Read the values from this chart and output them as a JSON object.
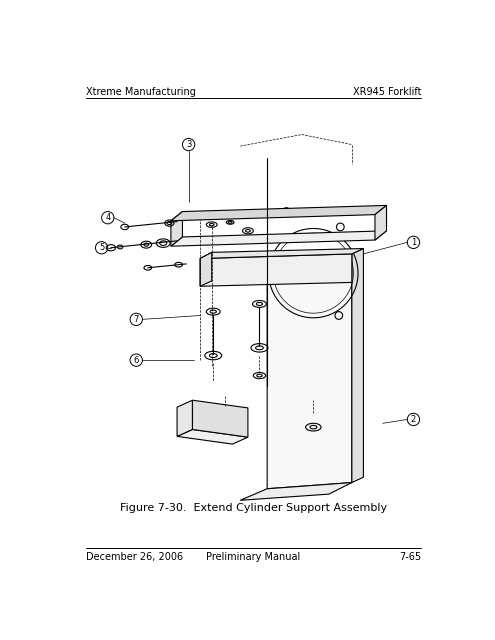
{
  "bg_color": "#ffffff",
  "header_left": "Xtreme Manufacturing",
  "header_right": "XR945 Forklift",
  "footer_left": "December 26, 2006",
  "footer_center": "Preliminary Manual",
  "footer_right": "7-65",
  "caption": "Figure 7-30.  Extend Cylinder Support Assembly",
  "text_color": "#000000",
  "line_color": "#000000",
  "drawing_color": "#000000",
  "font_size_header": 7.0,
  "font_size_footer": 7.0,
  "font_size_caption": 8.0
}
